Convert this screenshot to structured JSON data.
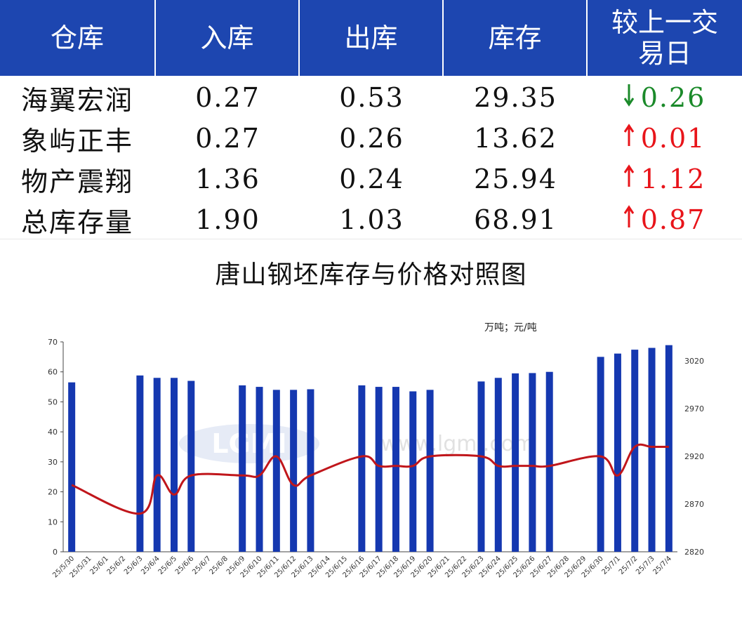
{
  "table": {
    "headers": [
      "仓库",
      "入库",
      "出库",
      "库存",
      "较上一交易日"
    ],
    "rows": [
      {
        "name": "海翼宏润",
        "in": "0.27",
        "out": "0.53",
        "stock": "29.35",
        "dir": "down",
        "change": "0.26"
      },
      {
        "name": "象屿正丰",
        "in": "0.27",
        "out": "0.26",
        "stock": "13.62",
        "dir": "up",
        "change": "0.01"
      },
      {
        "name": "物产震翔",
        "in": "1.36",
        "out": "0.24",
        "stock": "25.94",
        "dir": "up",
        "change": "1.12"
      },
      {
        "name": "总库存量",
        "in": "1.90",
        "out": "1.03",
        "stock": "68.91",
        "dir": "up",
        "change": "0.87"
      }
    ],
    "header_color": "#1d46b0",
    "up_color": "#e8141a",
    "down_color": "#1b8a2a"
  },
  "chart": {
    "title": "唐山钢坯库存与价格对照图",
    "unit_label": "万吨；元/吨",
    "watermark": "www.lgmi.com"
  },
  "chart_data": {
    "type": "bar",
    "categories": [
      "25/5/30",
      "25/5/31",
      "25/6/1",
      "25/6/2",
      "25/6/3",
      "25/6/4",
      "25/6/5",
      "25/6/6",
      "25/6/7",
      "25/6/8",
      "25/6/9",
      "25/6/10",
      "25/6/11",
      "25/6/12",
      "25/6/13",
      "25/6/14",
      "25/6/15",
      "25/6/16",
      "25/6/17",
      "25/6/18",
      "25/6/19",
      "25/6/20",
      "25/6/21",
      "25/6/22",
      "25/6/23",
      "25/6/24",
      "25/6/25",
      "25/6/26",
      "25/6/27",
      "25/6/28",
      "25/6/29",
      "25/6/30",
      "25/7/1",
      "25/7/2",
      "25/7/3",
      "25/7/4"
    ],
    "series": [
      {
        "type": "bar",
        "axis": "left",
        "color": "#1538b0",
        "values": [
          56.5,
          null,
          null,
          null,
          58.8,
          58,
          58,
          57,
          null,
          null,
          55.5,
          55,
          54,
          54,
          54.2,
          null,
          null,
          55.5,
          55,
          55,
          53.5,
          54,
          null,
          null,
          56.8,
          58,
          59.5,
          59.6,
          60,
          null,
          null,
          65,
          66.1,
          67.4,
          68,
          68.91
        ]
      },
      {
        "type": "line",
        "axis": "right",
        "color": "#c0161b",
        "values": [
          2890,
          null,
          null,
          null,
          2860,
          2900,
          2880,
          2900,
          null,
          null,
          2900,
          2900,
          2920,
          2890,
          2900,
          null,
          null,
          2920,
          2910,
          2910,
          2910,
          2920,
          null,
          null,
          2920,
          2910,
          2910,
          2910,
          2910,
          null,
          null,
          2920,
          2900,
          2930,
          2930,
          2930
        ]
      }
    ],
    "y_left": {
      "min": 0,
      "max": 70,
      "ticks": [
        0,
        10,
        20,
        30,
        40,
        50,
        60,
        70
      ]
    },
    "y_right": {
      "min": 2820,
      "max": 3040,
      "ticks": [
        2820,
        2870,
        2920,
        2970,
        3020
      ]
    },
    "grid": false,
    "legend": "none"
  }
}
